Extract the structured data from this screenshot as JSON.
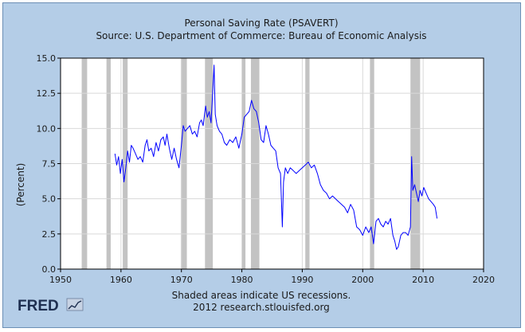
{
  "chart_data": {
    "type": "line",
    "title": "Personal Saving Rate (PSAVERT)",
    "subtitle": "Source: U.S. Department of Commerce: Bureau of Economic Analysis",
    "xlabel": "",
    "ylabel": "(Percent)",
    "xlim": [
      1950,
      2020
    ],
    "ylim": [
      0.0,
      15.0
    ],
    "x_ticks": [
      "1950",
      "1960",
      "1970",
      "1980",
      "1990",
      "2000",
      "2010",
      "2020"
    ],
    "y_ticks": [
      "0.0",
      "2.5",
      "5.0",
      "7.5",
      "10.0",
      "12.5",
      "15.0"
    ],
    "grid": true,
    "recessions": [
      [
        1953.5,
        1954.4
      ],
      [
        1957.6,
        1958.3
      ],
      [
        1960.3,
        1961.1
      ],
      [
        1969.9,
        1970.9
      ],
      [
        1973.9,
        1975.2
      ],
      [
        1980.0,
        1980.6
      ],
      [
        1981.5,
        1982.9
      ],
      [
        1990.5,
        1991.2
      ],
      [
        2001.2,
        2001.9
      ],
      [
        2007.9,
        2009.5
      ]
    ],
    "series": [
      {
        "name": "Personal Saving Rate",
        "color": "#0000ff",
        "x": [
          1959.0,
          1959.3,
          1959.6,
          1959.9,
          1960.2,
          1960.5,
          1960.8,
          1961.1,
          1961.4,
          1961.7,
          1962.0,
          1962.4,
          1962.8,
          1963.2,
          1963.6,
          1964.0,
          1964.3,
          1964.6,
          1965.0,
          1965.4,
          1965.8,
          1966.2,
          1966.6,
          1967.0,
          1967.3,
          1967.6,
          1968.0,
          1968.4,
          1968.8,
          1969.2,
          1969.6,
          1970.0,
          1970.3,
          1970.6,
          1971.0,
          1971.4,
          1971.8,
          1972.2,
          1972.6,
          1973.0,
          1973.3,
          1973.6,
          1974.0,
          1974.3,
          1974.6,
          1974.9,
          1975.2,
          1975.4,
          1975.6,
          1975.9,
          1976.3,
          1976.7,
          1977.1,
          1977.5,
          1978.0,
          1978.5,
          1979.0,
          1979.5,
          1980.0,
          1980.4,
          1980.8,
          1981.2,
          1981.6,
          1982.0,
          1982.4,
          1982.8,
          1983.2,
          1983.6,
          1984.0,
          1984.4,
          1984.8,
          1985.2,
          1985.6,
          1986.0,
          1986.4,
          1986.7,
          1986.9,
          1987.2,
          1987.6,
          1988.0,
          1988.5,
          1989.0,
          1989.5,
          1990.0,
          1990.5,
          1991.0,
          1991.5,
          1992.0,
          1992.5,
          1993.0,
          1993.5,
          1994.0,
          1994.5,
          1995.0,
          1995.5,
          1996.0,
          1996.5,
          1997.0,
          1997.5,
          1998.0,
          1998.5,
          1999.0,
          1999.5,
          2000.0,
          2000.5,
          2001.0,
          2001.4,
          2001.8,
          2002.2,
          2002.6,
          2003.0,
          2003.4,
          2003.8,
          2004.2,
          2004.6,
          2005.0,
          2005.3,
          2005.6,
          2005.9,
          2006.3,
          2006.7,
          2007.1,
          2007.5,
          2007.9,
          2008.1,
          2008.3,
          2008.6,
          2008.9,
          2009.2,
          2009.5,
          2009.8,
          2010.1,
          2010.5,
          2010.9,
          2011.3,
          2011.7,
          2012.0,
          2012.3
        ],
        "values": [
          8.2,
          7.4,
          8.0,
          6.8,
          7.8,
          6.2,
          7.2,
          8.4,
          7.6,
          8.8,
          8.6,
          8.2,
          7.8,
          8.0,
          7.6,
          8.8,
          9.2,
          8.4,
          8.6,
          8.0,
          9.0,
          8.4,
          9.2,
          9.4,
          8.8,
          9.6,
          8.6,
          7.8,
          8.6,
          7.8,
          7.2,
          8.8,
          10.2,
          9.8,
          10.0,
          10.2,
          9.6,
          9.8,
          9.4,
          10.4,
          10.6,
          10.2,
          11.6,
          10.8,
          11.2,
          10.4,
          12.8,
          14.5,
          11.0,
          10.2,
          9.8,
          9.6,
          9.0,
          8.8,
          9.2,
          9.0,
          9.4,
          8.6,
          9.6,
          10.8,
          11.0,
          11.2,
          12.0,
          11.4,
          11.2,
          10.4,
          9.2,
          9.0,
          10.2,
          9.6,
          8.8,
          8.6,
          8.4,
          7.2,
          6.8,
          3.0,
          6.2,
          7.2,
          6.8,
          7.2,
          7.0,
          6.8,
          7.0,
          7.2,
          7.4,
          7.6,
          7.2,
          7.4,
          6.8,
          6.0,
          5.6,
          5.4,
          5.0,
          5.2,
          5.0,
          4.8,
          4.6,
          4.4,
          4.0,
          4.6,
          4.2,
          3.0,
          2.8,
          2.4,
          3.0,
          2.6,
          3.0,
          1.8,
          3.4,
          3.6,
          3.2,
          3.0,
          3.4,
          3.2,
          3.6,
          2.4,
          2.0,
          1.4,
          1.6,
          2.4,
          2.6,
          2.6,
          2.4,
          3.0,
          8.0,
          5.6,
          6.0,
          5.4,
          4.8,
          5.6,
          5.2,
          5.8,
          5.4,
          5.0,
          4.8,
          4.6,
          4.4,
          3.6
        ]
      }
    ]
  },
  "footer": {
    "note_line1": "Shaded areas indicate US recessions.",
    "note_line2": "2012 research.stlouisfed.org"
  },
  "logo": {
    "text": "FRED"
  }
}
